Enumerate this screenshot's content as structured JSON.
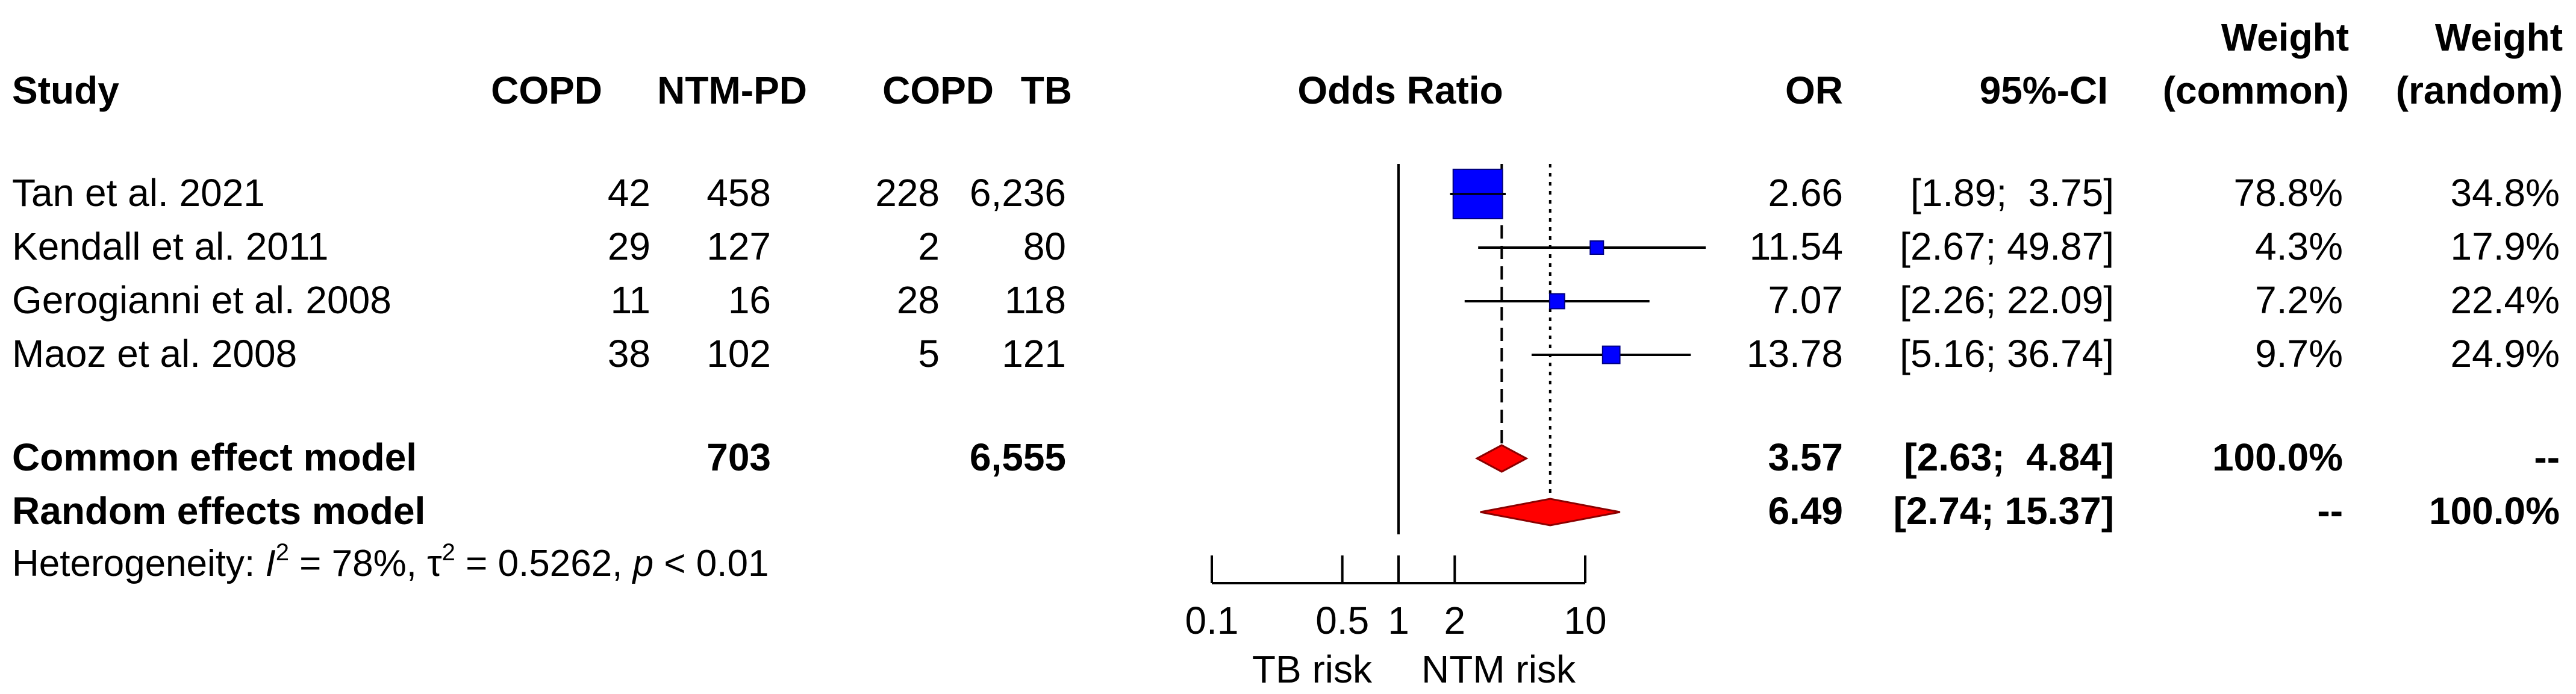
{
  "headers": {
    "study": "Study",
    "events_exp": "COPD",
    "total_exp": "NTM-PD",
    "events_ctrl": "COPD",
    "total_ctrl": "TB",
    "plot": "Odds Ratio",
    "or": "OR",
    "ci": "95%-CI",
    "weight_common_line1": "Weight",
    "weight_common_line2": "(common)",
    "weight_random_line1": "Weight",
    "weight_random_line2": "(random)"
  },
  "studies": [
    {
      "study": "Tan et al. 2021",
      "e1": "42",
      "n1": "458",
      "e2": "228",
      "n2": "6,236",
      "or_text": "2.66",
      "ci_text": "[1.89;  3.75]",
      "w_common": "78.8%",
      "w_random": "34.8%"
    },
    {
      "study": "Kendall et al. 2011",
      "e1": "29",
      "n1": "127",
      "e2": "2",
      "n2": "80",
      "or_text": "11.54",
      "ci_text": "[2.67; 49.87]",
      "w_common": "4.3%",
      "w_random": "17.9%"
    },
    {
      "study": "Gerogianni et al. 2008",
      "e1": "11",
      "n1": "16",
      "e2": "28",
      "n2": "118",
      "or_text": "7.07",
      "ci_text": "[2.26; 22.09]",
      "w_common": "7.2%",
      "w_random": "22.4%"
    },
    {
      "study": "Maoz et al. 2008",
      "e1": "38",
      "n1": "102",
      "e2": "5",
      "n2": "121",
      "or_text": "13.78",
      "ci_text": "[5.16; 36.74]",
      "w_common": "9.7%",
      "w_random": "24.9%"
    }
  ],
  "models": [
    {
      "label": "Common effect model",
      "n1": "703",
      "n2": "6,555",
      "or_text": "3.57",
      "ci_text": "[2.63;  4.84]",
      "w_common": "100.0%",
      "w_random": "--"
    },
    {
      "label": "Random effects model",
      "n1": "",
      "n2": "",
      "or_text": "6.49",
      "ci_text": "[2.74; 15.37]",
      "w_common": "--",
      "w_random": "100.0%"
    }
  ],
  "heterogeneity": {
    "prefix": "Heterogeneity: ",
    "i2_symbol": "I",
    "i2_sup": "2",
    "i2_value": " = 78%, ",
    "tau_symbol": "τ",
    "tau_sup": "2",
    "tau_value": " = 0.5262, ",
    "p_symbol": "p",
    "p_value": " < 0.01"
  },
  "colors": {
    "study_box": "#0000ff",
    "study_box_border": "#000080",
    "diamond": "#ff0000",
    "diamond_border": "#8b0000",
    "line": "#000000"
  },
  "chart_data": {
    "type": "forest",
    "x_scale": "log",
    "xlim": [
      0.1,
      10
    ],
    "ticks": [
      0.1,
      0.5,
      1,
      2,
      10
    ],
    "tick_labels": [
      "0.1",
      "0.5",
      "1",
      "2",
      "10"
    ],
    "xlabel_left": "TB risk",
    "xlabel_right": "NTM risk",
    "null_value": 1,
    "studies": [
      {
        "or": 2.66,
        "lower": 1.89,
        "upper": 3.75,
        "weight_common": 78.8
      },
      {
        "or": 11.54,
        "lower": 2.67,
        "upper": 49.87,
        "weight_common": 4.3
      },
      {
        "or": 7.07,
        "lower": 2.26,
        "upper": 22.09,
        "weight_common": 7.2
      },
      {
        "or": 13.78,
        "lower": 5.16,
        "upper": 36.74,
        "weight_common": 9.7
      }
    ],
    "common": {
      "or": 3.57,
      "lower": 2.63,
      "upper": 4.84
    },
    "random": {
      "or": 6.49,
      "lower": 2.74,
      "upper": 15.37
    }
  }
}
